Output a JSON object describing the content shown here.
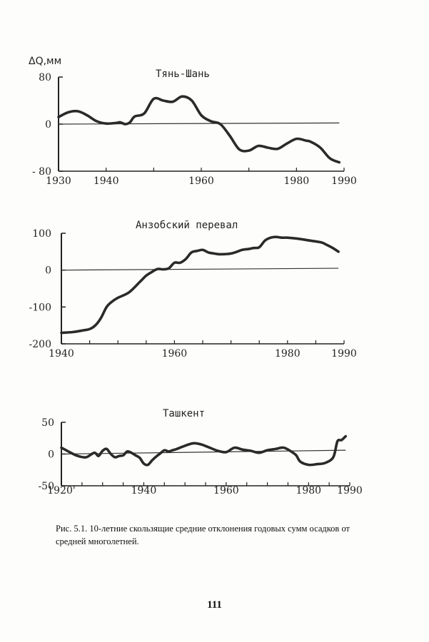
{
  "y_label": "ΔQ,мм",
  "caption": "Рис. 5.1. 10-летние скользящие средние отклонения годовых сумм осадков от средней многолетней.",
  "page_number": "111",
  "chart_data": [
    {
      "type": "line",
      "title": "Тянь-Шань",
      "xlim": [
        1930,
        1990
      ],
      "ylim": [
        -80,
        80
      ],
      "yticks": [
        80,
        0,
        -80
      ],
      "ytick_labels": [
        "80",
        "0",
        "- 80"
      ],
      "xtick_labels": [
        "1930",
        "1940",
        "1960",
        "1980",
        "1990"
      ],
      "xtick_values": [
        1930,
        1940,
        1960,
        1980,
        1990
      ],
      "minor_xticks": [
        1940,
        1950,
        1960,
        1970,
        1980,
        1990
      ],
      "reference_line": [
        [
          1930,
          0
        ],
        [
          1989,
          2
        ]
      ],
      "series": [
        {
          "name": "Тянь-Шань",
          "x": [
            1930,
            1932,
            1934,
            1936,
            1938,
            1940,
            1942,
            1943,
            1944,
            1945,
            1946,
            1948,
            1950,
            1952,
            1954,
            1956,
            1958,
            1960,
            1962,
            1964,
            1966,
            1968,
            1970,
            1972,
            1974,
            1976,
            1978,
            1980,
            1982,
            1983,
            1985,
            1987,
            1989
          ],
          "y": [
            12,
            20,
            22,
            15,
            5,
            1,
            2,
            3,
            0,
            3,
            13,
            18,
            43,
            40,
            38,
            47,
            40,
            15,
            5,
            0,
            -20,
            -43,
            -45,
            -37,
            -40,
            -42,
            -33,
            -25,
            -28,
            -30,
            -40,
            -58,
            -65
          ]
        }
      ]
    },
    {
      "type": "line",
      "title": "Анзобский перевал",
      "xlim": [
        1940,
        1990
      ],
      "ylim": [
        -200,
        100
      ],
      "yticks": [
        100,
        0,
        -100,
        -200
      ],
      "ytick_labels": [
        "100",
        "0",
        "-100",
        "-200"
      ],
      "xtick_labels": [
        "1940",
        "1960",
        "1980",
        "1990"
      ],
      "xtick_values": [
        1940,
        1960,
        1980,
        1990
      ],
      "minor_xticks": [
        1945,
        1950,
        1955,
        1960,
        1965,
        1970,
        1975,
        1980,
        1985,
        1990
      ],
      "reference_line": [
        [
          1940,
          0
        ],
        [
          1989,
          5
        ]
      ],
      "series": [
        {
          "name": "Анзобский перевал",
          "x": [
            1940,
            1942,
            1944,
            1945,
            1946,
            1947,
            1948,
            1949,
            1950,
            1952,
            1954,
            1955,
            1956,
            1957,
            1958,
            1959,
            1960,
            1961,
            1962,
            1963,
            1964,
            1965,
            1966,
            1967,
            1968,
            1970,
            1972,
            1973,
            1974,
            1975,
            1976,
            1977,
            1978,
            1979,
            1980,
            1982,
            1984,
            1986,
            1987,
            1988,
            1989
          ],
          "y": [
            -170,
            -168,
            -163,
            -160,
            -150,
            -130,
            -100,
            -85,
            -75,
            -60,
            -30,
            -15,
            -5,
            3,
            2,
            5,
            20,
            20,
            30,
            48,
            52,
            55,
            48,
            45,
            43,
            45,
            55,
            57,
            60,
            62,
            80,
            88,
            90,
            88,
            88,
            85,
            80,
            75,
            68,
            60,
            50
          ]
        }
      ]
    },
    {
      "type": "line",
      "title": "Ташкент",
      "xlim": [
        1920,
        1990
      ],
      "ylim": [
        -50,
        50
      ],
      "yticks": [
        50,
        0,
        -50
      ],
      "ytick_labels": [
        "50",
        "0",
        "-50"
      ],
      "xtick_labels": [
        "1920'",
        "1940",
        "1960",
        "1980",
        "1990"
      ],
      "xtick_values": [
        1920,
        1940,
        1960,
        1980,
        1990
      ],
      "minor_xticks": [
        1925,
        1930,
        1935,
        1940,
        1945,
        1950,
        1955,
        1960,
        1965,
        1970,
        1975,
        1980,
        1985,
        1990
      ],
      "reference_line": [
        [
          1920,
          0
        ],
        [
          1989,
          6
        ]
      ],
      "series": [
        {
          "name": "Ташкент",
          "x": [
            1920,
            1922,
            1924,
            1926,
            1928,
            1929,
            1930,
            1931,
            1932,
            1933,
            1934,
            1935,
            1936,
            1937,
            1938,
            1939,
            1940,
            1941,
            1942,
            1943,
            1944,
            1945,
            1946,
            1947,
            1948,
            1950,
            1952,
            1954,
            1956,
            1958,
            1960,
            1962,
            1964,
            1966,
            1968,
            1970,
            1972,
            1974,
            1976,
            1977,
            1978,
            1980,
            1982,
            1984,
            1986,
            1987,
            1988,
            1989
          ],
          "y": [
            10,
            3,
            -3,
            -5,
            2,
            -3,
            5,
            8,
            0,
            -5,
            -3,
            -2,
            4,
            2,
            -2,
            -6,
            -15,
            -17,
            -10,
            -4,
            1,
            6,
            4,
            6,
            8,
            13,
            17,
            15,
            10,
            5,
            3,
            10,
            7,
            5,
            2,
            6,
            8,
            10,
            3,
            -2,
            -12,
            -17,
            -16,
            -14,
            -5,
            20,
            22,
            28
          ]
        }
      ]
    }
  ]
}
